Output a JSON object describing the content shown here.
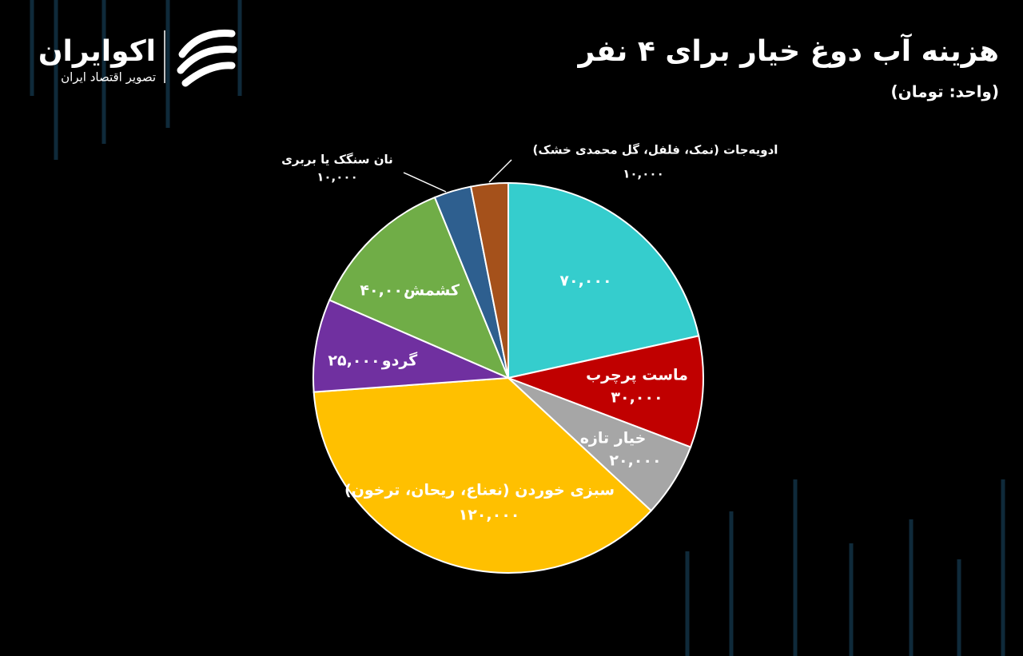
{
  "brand": {
    "name": "اکوایران",
    "tagline": "تصویر اقتصاد ایران"
  },
  "chart_data": {
    "type": "pie",
    "title": "هزینه آب دوغ خیار برای ۴ نفر",
    "subtitle": "(واحد: تومان)",
    "categories": [
      null,
      "ماست پرچرب",
      "خیار تازه",
      "سبزی خوردن (نعناع، ریحان، ترخون)",
      "گردو",
      "کشمش",
      "نان سنگک یا بربری",
      "ادویه‌جات (نمک، فلفل، گل محمدی خشک)"
    ],
    "values": [
      70000,
      30000,
      20000,
      120000,
      25000,
      40000,
      10000,
      10000
    ],
    "value_labels": [
      "۷۰,۰۰۰",
      "۳۰,۰۰۰",
      "۲۰,۰۰۰",
      "۱۲۰,۰۰۰",
      "۲۵,۰۰۰",
      "۴۰,۰۰۰",
      "۱۰,۰۰۰",
      "۱۰,۰۰۰"
    ],
    "colors": [
      "#35cdcd",
      "#c00000",
      "#a6a6a6",
      "#ffc000",
      "#7030a0",
      "#70ad47",
      "#2e5f8f",
      "#a5511b"
    ]
  }
}
